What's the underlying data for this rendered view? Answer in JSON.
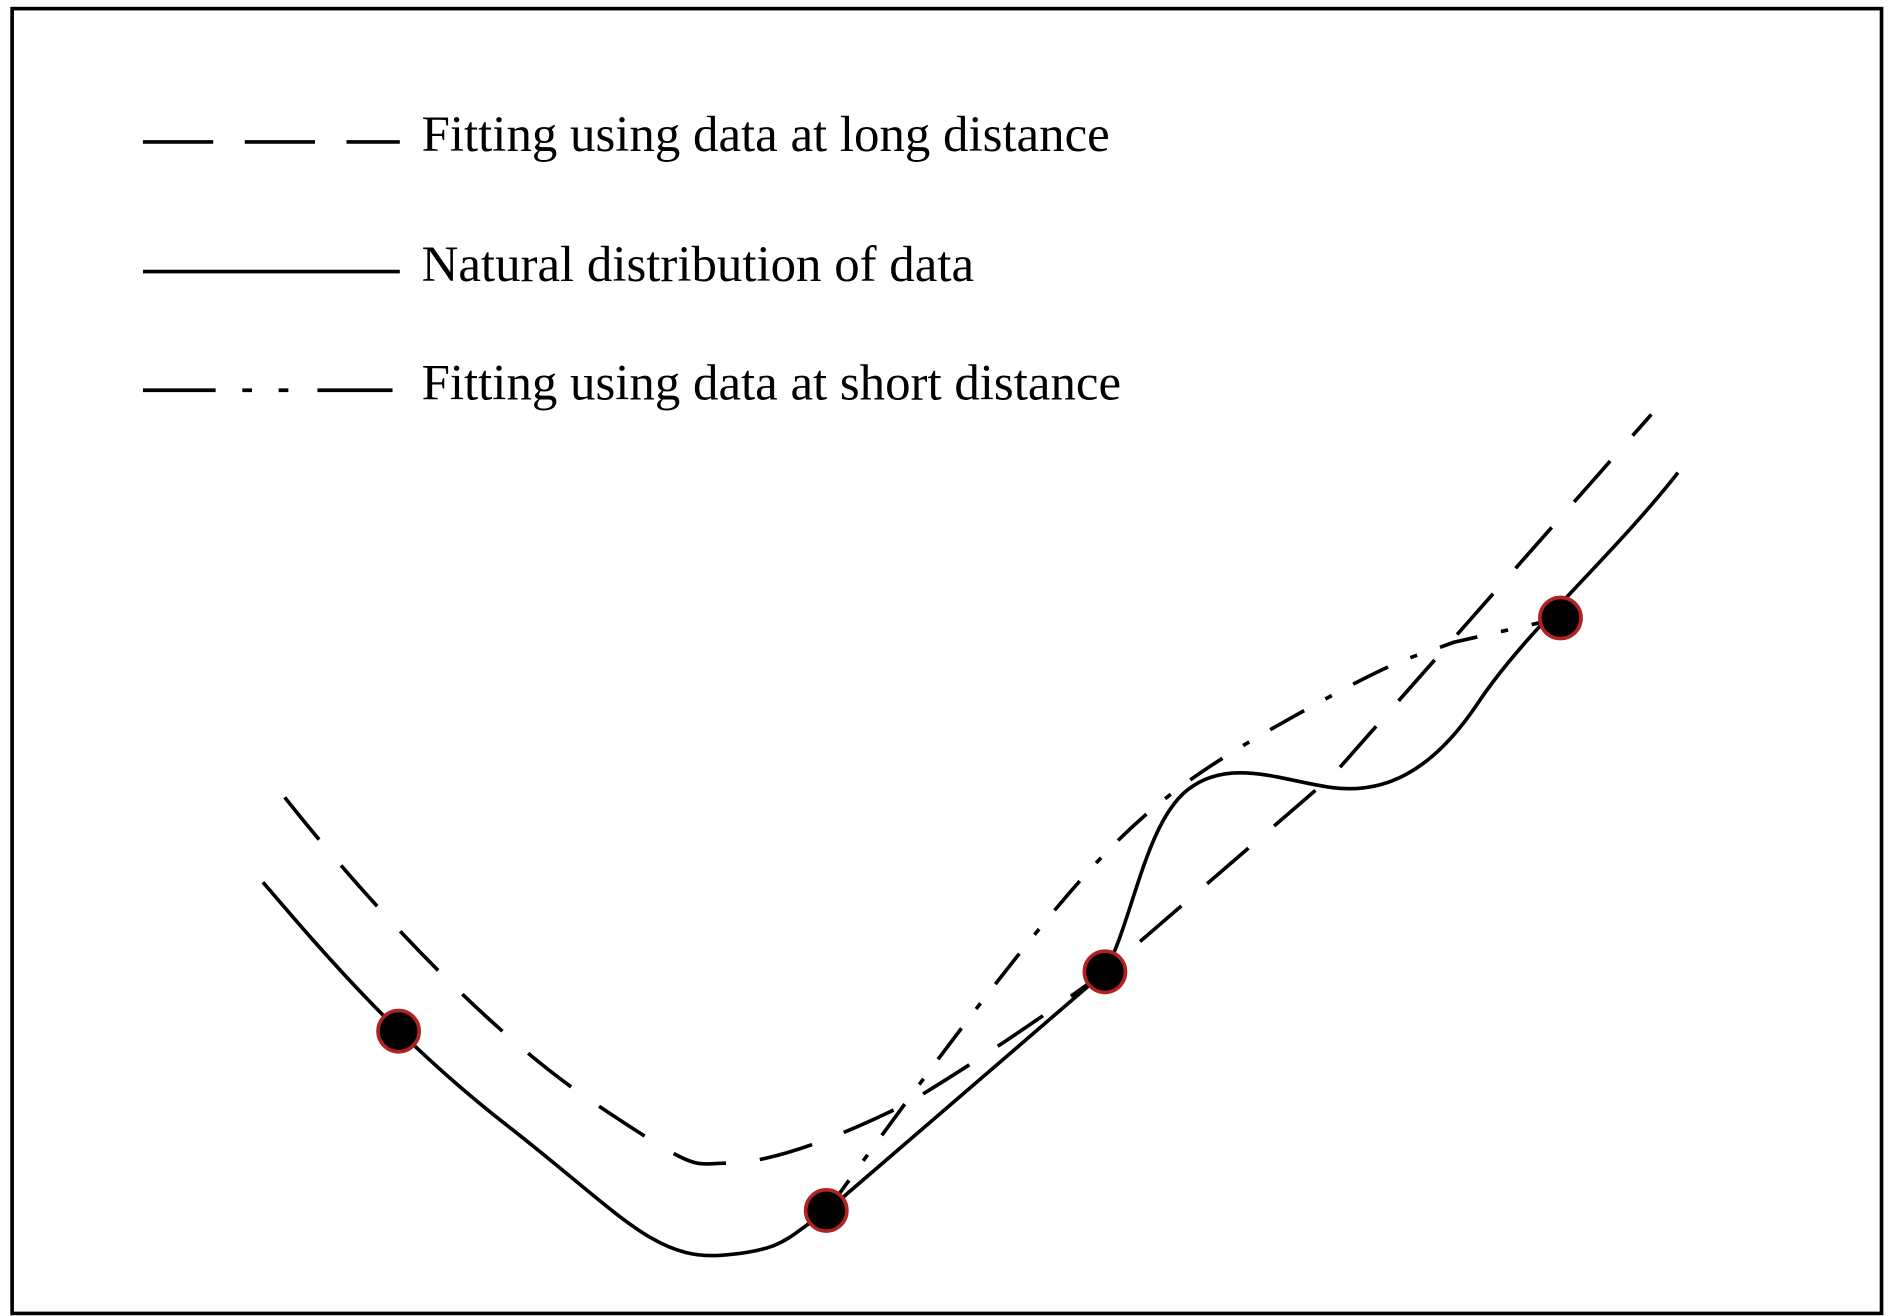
{
  "legend": [
    {
      "label": "Fitting using data at long distance"
    },
    {
      "label": "Natural distribution of data"
    },
    {
      "label": "Fitting using data at short distance"
    }
  ]
}
